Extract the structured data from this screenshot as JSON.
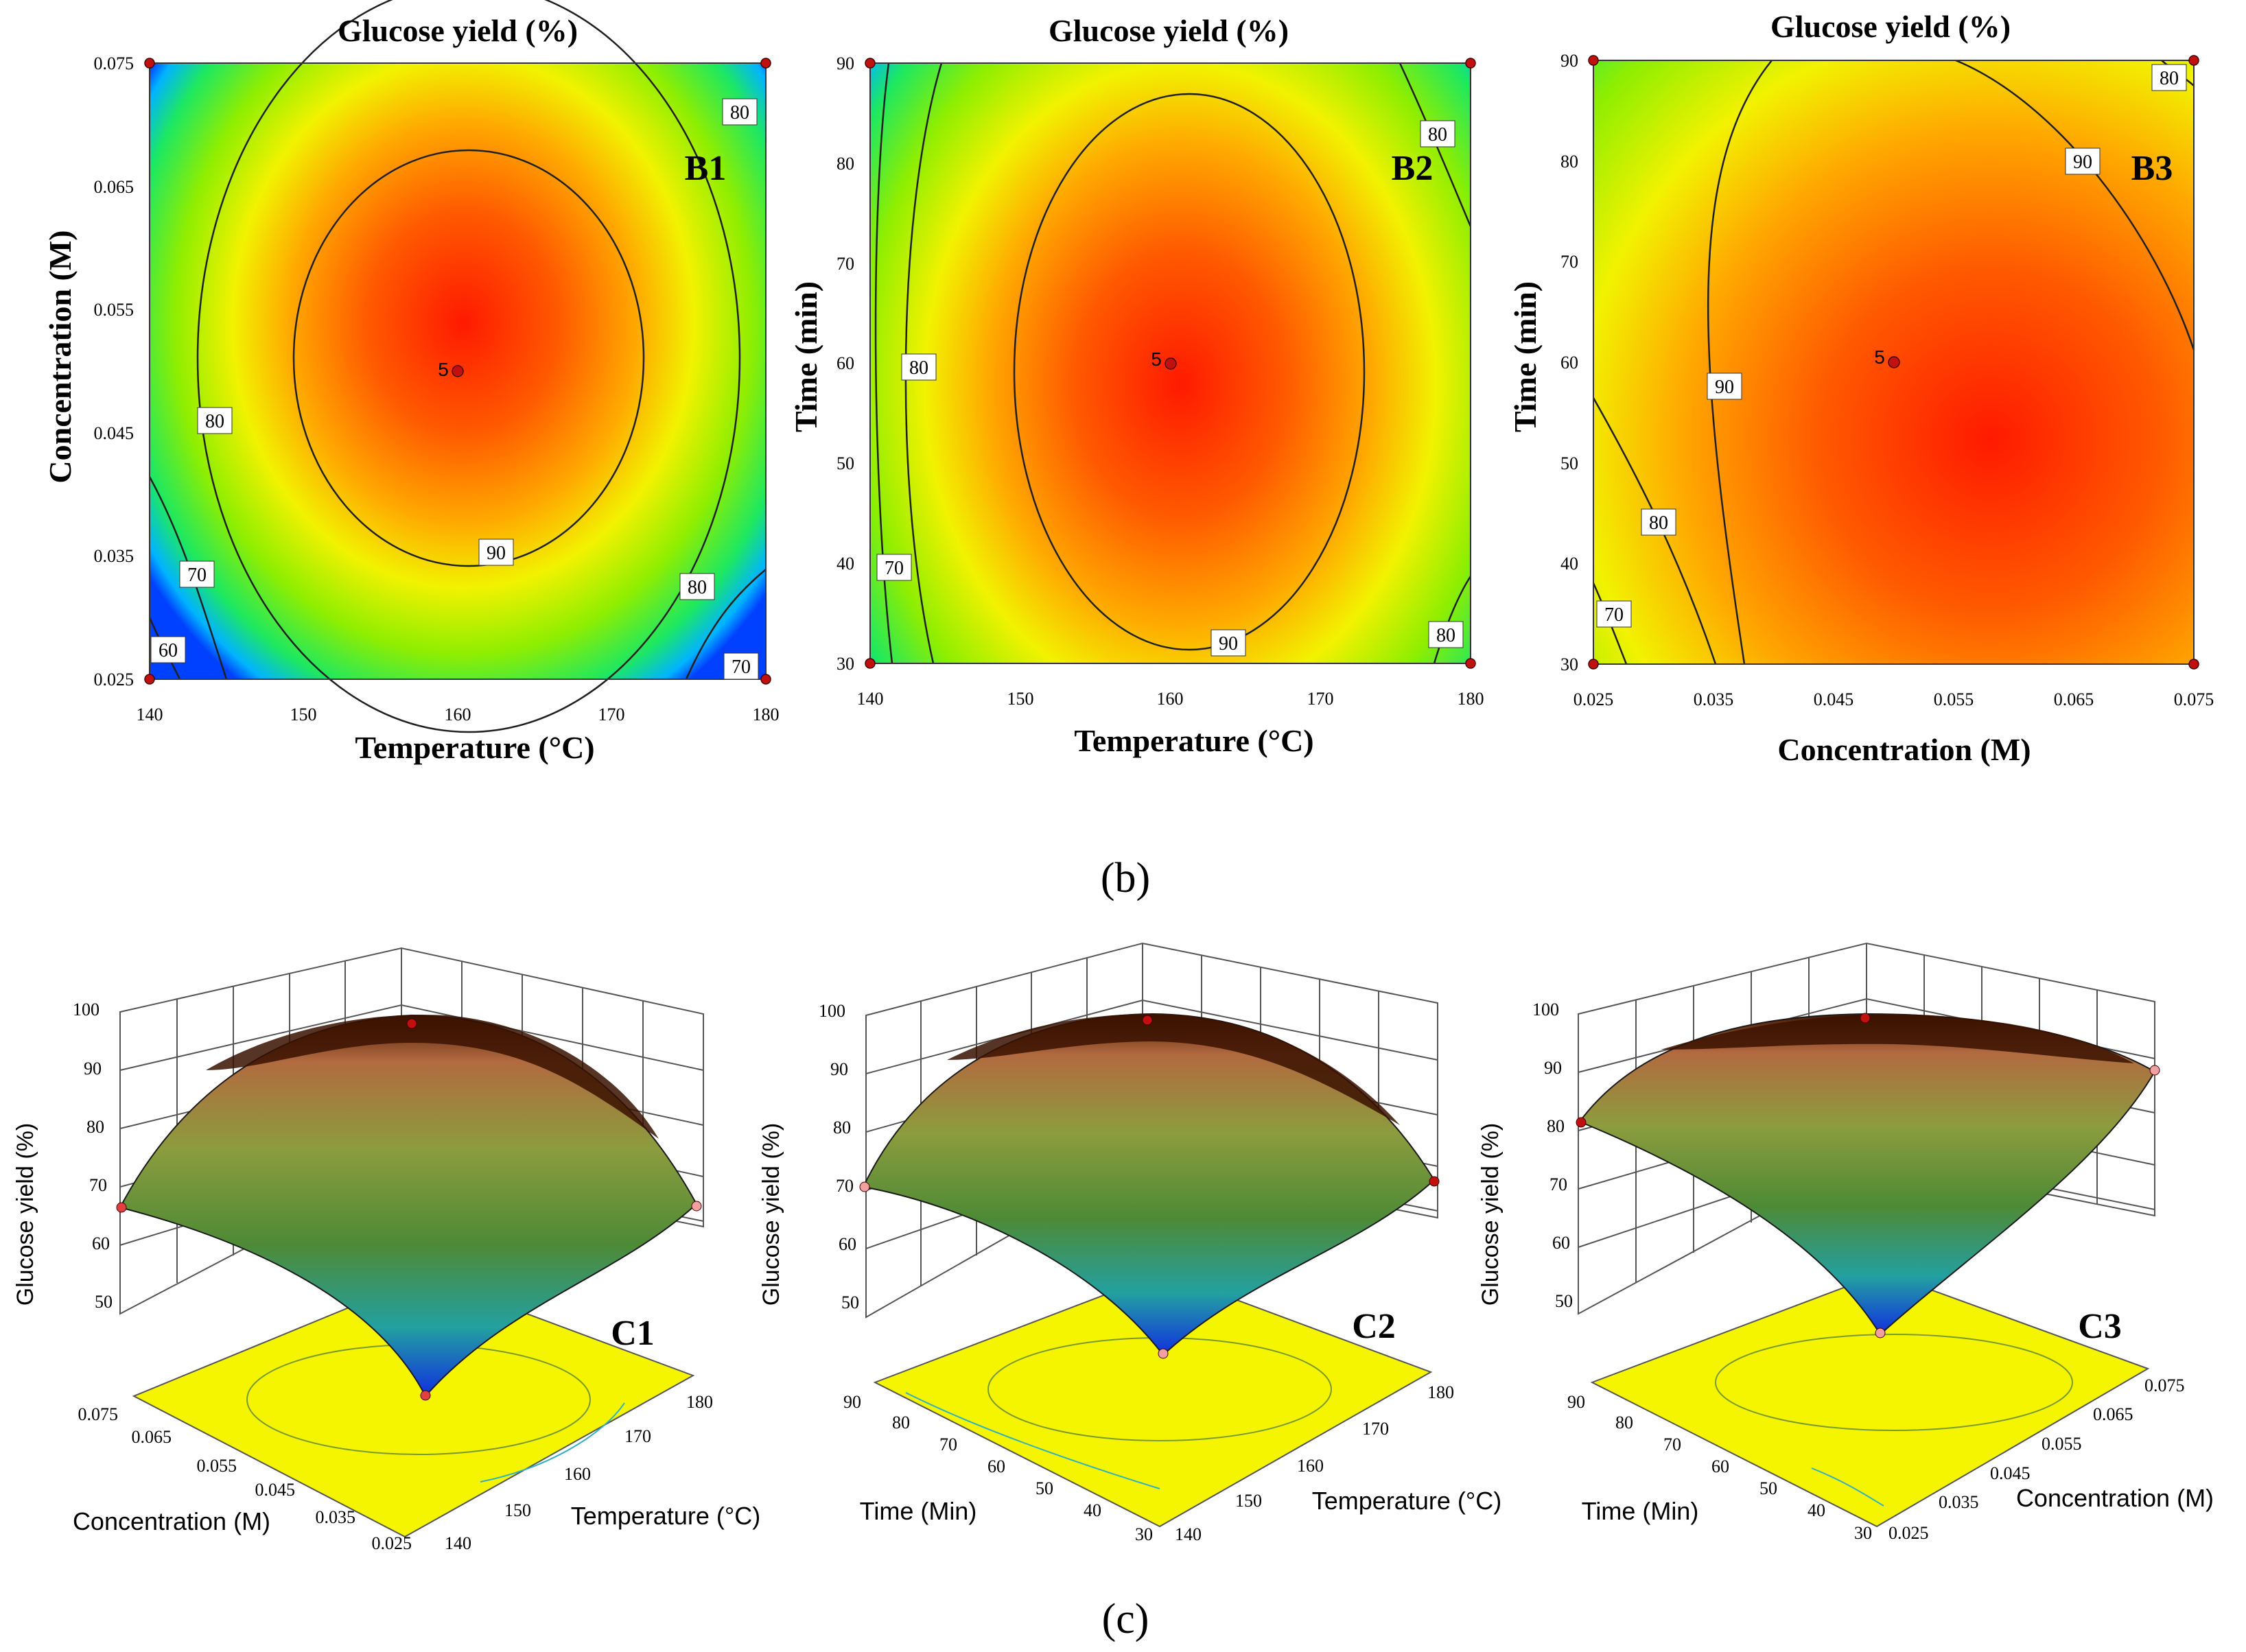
{
  "panel_labels": {
    "b": "(b)",
    "c": "(c)"
  },
  "chart_data": [
    {
      "type": "contour",
      "id": "B1",
      "label": "B1",
      "title": "Glucose yield (%)",
      "xlabel": "Temperature (°C)",
      "ylabel": "Concentration (M)",
      "xlim": [
        140,
        180
      ],
      "ylim": [
        0.025,
        0.075
      ],
      "xticks": [
        "140",
        "150",
        "160",
        "170",
        "180"
      ],
      "yticks": [
        "0.025",
        "0.035",
        "0.045",
        "0.055",
        "0.065",
        "0.075"
      ],
      "contour_labels": [
        "60",
        "70",
        "80",
        "80",
        "80",
        "90",
        "70"
      ],
      "center": {
        "label": "5",
        "x": 160,
        "y": 0.05
      },
      "design_points": [
        [
          140,
          0.025
        ],
        [
          180,
          0.025
        ],
        [
          140,
          0.075
        ],
        [
          180,
          0.075
        ]
      ]
    },
    {
      "type": "contour",
      "id": "B2",
      "label": "B2",
      "title": "Glucose yield (%)",
      "xlabel": "Temperature (°C)",
      "ylabel": "Time (min)",
      "xlim": [
        140,
        180
      ],
      "ylim": [
        30,
        90
      ],
      "xticks": [
        "140",
        "150",
        "160",
        "170",
        "180"
      ],
      "yticks": [
        "30",
        "40",
        "50",
        "60",
        "70",
        "80",
        "90"
      ],
      "contour_labels": [
        "70",
        "80",
        "90",
        "80",
        "80"
      ],
      "center": {
        "label": "5",
        "x": 160,
        "y": 60
      },
      "design_points": [
        [
          140,
          30
        ],
        [
          180,
          30
        ],
        [
          140,
          90
        ],
        [
          180,
          90
        ]
      ]
    },
    {
      "type": "contour",
      "id": "B3",
      "label": "B3",
      "title": "Glucose yield (%)",
      "xlabel": "Concentration (M)",
      "ylabel": "Time (min)",
      "xlim": [
        0.025,
        0.075
      ],
      "ylim": [
        30,
        90
      ],
      "xticks": [
        "0.025",
        "0.035",
        "0.045",
        "0.055",
        "0.065",
        "0.075"
      ],
      "yticks": [
        "30",
        "40",
        "50",
        "60",
        "70",
        "80",
        "90"
      ],
      "contour_labels": [
        "70",
        "80",
        "90",
        "90",
        "80"
      ],
      "center": {
        "label": "5",
        "x": 0.05,
        "y": 60
      },
      "design_points": [
        [
          0.025,
          30
        ],
        [
          0.075,
          30
        ],
        [
          0.025,
          90
        ],
        [
          0.075,
          90
        ]
      ]
    },
    {
      "type": "surface",
      "id": "C1",
      "label": "C1",
      "zlabel": "Glucose yield (%)",
      "xlabel": "Temperature (°C)",
      "ylabel": "Concentration (M)",
      "xticks": [
        "140",
        "150",
        "160",
        "170",
        "180"
      ],
      "yticks": [
        "0.025",
        "0.035",
        "0.045",
        "0.055",
        "0.065",
        "0.075"
      ],
      "zticks": [
        "50",
        "60",
        "70",
        "80",
        "90",
        "100"
      ],
      "zlim": [
        45,
        100
      ]
    },
    {
      "type": "surface",
      "id": "C2",
      "label": "C2",
      "zlabel": "Glucose yield (%)",
      "xlabel": "Temperature (°C)",
      "ylabel": "Time (Min)",
      "xticks": [
        "140",
        "150",
        "160",
        "170",
        "180"
      ],
      "yticks": [
        "30",
        "40",
        "50",
        "60",
        "70",
        "80",
        "90"
      ],
      "zticks": [
        "50",
        "60",
        "70",
        "80",
        "90",
        "100"
      ],
      "zlim": [
        45,
        100
      ]
    },
    {
      "type": "surface",
      "id": "C3",
      "label": "C3",
      "zlabel": "Glucose yield (%)",
      "xlabel": "Concentration (M)",
      "ylabel": "Time (Min)",
      "xticks": [
        "0.025",
        "0.035",
        "0.045",
        "0.055",
        "0.065",
        "0.075"
      ],
      "yticks": [
        "30",
        "40",
        "50",
        "60",
        "70",
        "80",
        "90"
      ],
      "zticks": [
        "50",
        "60",
        "70",
        "80",
        "90",
        "100"
      ],
      "zlim": [
        45,
        100
      ]
    }
  ]
}
